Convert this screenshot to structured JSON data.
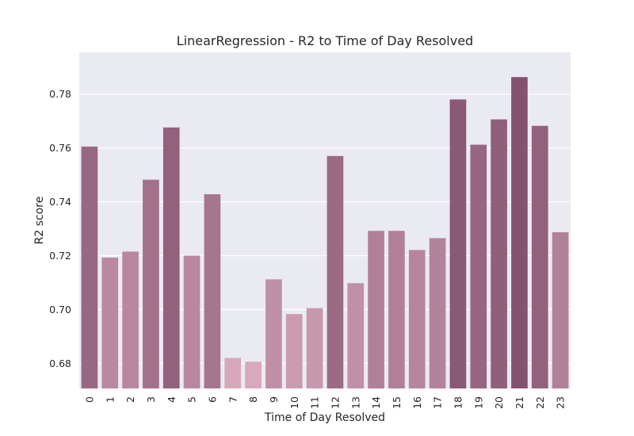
{
  "chart_data": {
    "type": "bar",
    "title": "LinearRegression - R2 to Time of Day Resolved",
    "xlabel": "Time of Day Resolved",
    "ylabel": "R2 score",
    "categories": [
      "0",
      "1",
      "2",
      "3",
      "4",
      "5",
      "6",
      "7",
      "8",
      "9",
      "10",
      "11",
      "12",
      "13",
      "14",
      "15",
      "16",
      "17",
      "18",
      "19",
      "20",
      "21",
      "22",
      "23"
    ],
    "values": [
      0.7605,
      0.7193,
      0.7215,
      0.7482,
      0.7676,
      0.72,
      0.7428,
      0.682,
      0.6806,
      0.7112,
      0.6983,
      0.7005,
      0.757,
      0.7098,
      0.7292,
      0.7292,
      0.7221,
      0.7265,
      0.778,
      0.7612,
      0.7706,
      0.7863,
      0.7682,
      0.7287
    ],
    "ylim": [
      0.6707,
      0.7955
    ],
    "yticks": [
      0.68,
      0.7,
      0.72,
      0.74,
      0.76,
      0.78
    ],
    "ytick_labels": [
      "0.68",
      "0.70",
      "0.72",
      "0.74",
      "0.76",
      "0.78"
    ],
    "grid": true,
    "legend": "none",
    "colors": {
      "background": "#eaeaf2",
      "grid": "#ffffff",
      "bar_low": "#d8a8bb",
      "bar_high": "#83526f"
    }
  }
}
